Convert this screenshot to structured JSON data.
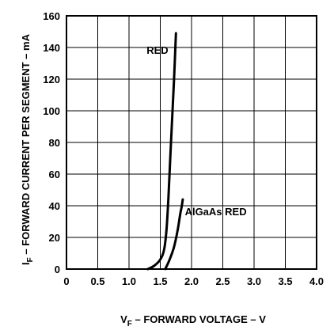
{
  "chart_data": {
    "type": "line",
    "title": "",
    "xlabel": {
      "prefix": "V",
      "subscript": "F",
      "text": " – FORWARD VOLTAGE – V"
    },
    "ylabel": {
      "prefix": "I",
      "subscript": "F",
      "text": " – FORWARD CURRENT PER SEGMENT – mA"
    },
    "xlim": [
      0,
      4.0
    ],
    "ylim": [
      0,
      160
    ],
    "x_ticks": [
      0,
      0.5,
      1.0,
      1.5,
      2.0,
      2.5,
      3.0,
      3.5,
      4.0
    ],
    "x_tick_labels": [
      "0",
      "0.5",
      "1.0",
      "1.5",
      "2.0",
      "2.5",
      "3.0",
      "3.5",
      "4.0"
    ],
    "y_ticks": [
      0,
      20,
      40,
      60,
      80,
      100,
      120,
      140,
      160
    ],
    "y_tick_labels": [
      "0",
      "20",
      "40",
      "60",
      "80",
      "100",
      "120",
      "140",
      "160"
    ],
    "grid": true,
    "series": [
      {
        "name": "RED",
        "color": "#000000",
        "points": [
          [
            1.3,
            0
          ],
          [
            1.4,
            2
          ],
          [
            1.5,
            6
          ],
          [
            1.56,
            12
          ],
          [
            1.6,
            25
          ],
          [
            1.63,
            45
          ],
          [
            1.66,
            70
          ],
          [
            1.69,
            95
          ],
          [
            1.72,
            120
          ],
          [
            1.75,
            149
          ]
        ]
      },
      {
        "name": "AlGaAs RED",
        "color": "#000000",
        "points": [
          [
            1.58,
            0
          ],
          [
            1.65,
            6
          ],
          [
            1.72,
            14
          ],
          [
            1.78,
            25
          ],
          [
            1.82,
            35
          ],
          [
            1.84,
            39
          ],
          [
            1.86,
            44
          ]
        ]
      }
    ]
  }
}
